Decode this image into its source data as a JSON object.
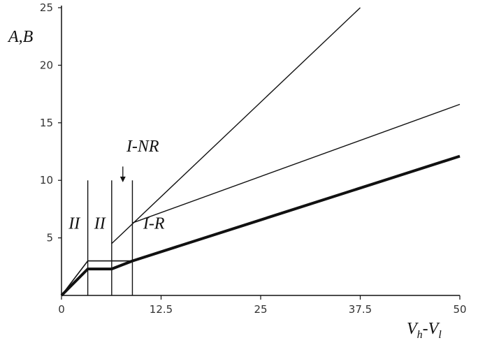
{
  "chart_data": {
    "type": "line",
    "ylabel": "A,B",
    "xlabel": {
      "main": "V",
      "sub1": "h",
      "dash": "-",
      "main2": "V",
      "sub2": "l"
    },
    "xlim": [
      0,
      50
    ],
    "ylim": [
      0,
      25
    ],
    "x_ticks": [
      0,
      12.5,
      25,
      37.5,
      50
    ],
    "x_tick_labels": [
      "0",
      "12.5",
      "25",
      "37.5",
      "50"
    ],
    "y_ticks": [
      5,
      10,
      15,
      20,
      25
    ],
    "y_tick_labels": [
      "5",
      "10",
      "15",
      "20",
      "25"
    ],
    "grid": false,
    "series": [
      {
        "points": [
          [
            0,
            0
          ],
          [
            3.3,
            2.3
          ],
          [
            6.3,
            2.3
          ],
          [
            8.9,
            3.0
          ],
          [
            50,
            12.1
          ]
        ],
        "stroke_width": 4
      },
      {
        "points": [
          [
            0,
            0
          ],
          [
            3.3,
            3.0
          ],
          [
            8.9,
            3.0
          ]
        ],
        "stroke_width": 1.6
      },
      {
        "points": [
          [
            6.3,
            4.5
          ],
          [
            37.5,
            25.0
          ]
        ],
        "stroke_width": 1.4
      },
      {
        "points": [
          [
            8.9,
            6.3
          ],
          [
            50,
            16.6
          ]
        ],
        "stroke_width": 1.4
      }
    ],
    "vlines": [
      {
        "x": 3.3,
        "y0": 0,
        "y1": 10.0
      },
      {
        "x": 6.3,
        "y0": 0,
        "y1": 10.0
      },
      {
        "x": 8.9,
        "y0": 0,
        "y1": 10.0
      }
    ],
    "region_labels": [
      {
        "text": "II",
        "x": 1.6,
        "y": 5.8
      },
      {
        "text": "II",
        "x": 4.8,
        "y": 5.8
      },
      {
        "text": "I-R",
        "x": 11.6,
        "y": 5.8
      },
      {
        "text": "I-NR",
        "x": 10.2,
        "y": 12.5
      }
    ],
    "annotation_arrow": {
      "x": 7.7,
      "y_from": 11.2,
      "y_to": 9.9
    }
  }
}
